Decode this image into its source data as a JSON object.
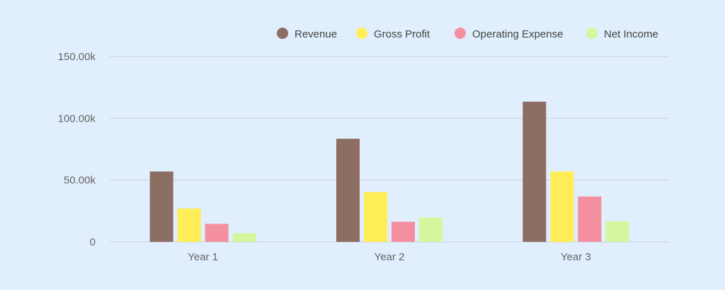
{
  "chart_data": {
    "type": "bar",
    "categories": [
      "Year 1",
      "Year 2",
      "Year 3"
    ],
    "series": [
      {
        "name": "Revenue",
        "color": "#8d6e63",
        "values": [
          57000,
          83500,
          113500
        ]
      },
      {
        "name": "Gross Profit",
        "color": "#ffee58",
        "values": [
          27000,
          40400,
          57000
        ]
      },
      {
        "name": "Operating Expense",
        "color": "#f48fa0",
        "values": [
          14600,
          16300,
          36700
        ]
      },
      {
        "name": "Net Income",
        "color": "#d4f79e",
        "values": [
          7000,
          19800,
          16700
        ]
      }
    ],
    "yticks": [
      {
        "value": 0,
        "label": "0"
      },
      {
        "value": 50000,
        "label": "50.00k"
      },
      {
        "value": 100000,
        "label": "100.00k"
      },
      {
        "value": 150000,
        "label": "150.00k"
      }
    ],
    "ylim": [
      0,
      150000
    ],
    "grid": true,
    "legend": "top-right"
  }
}
